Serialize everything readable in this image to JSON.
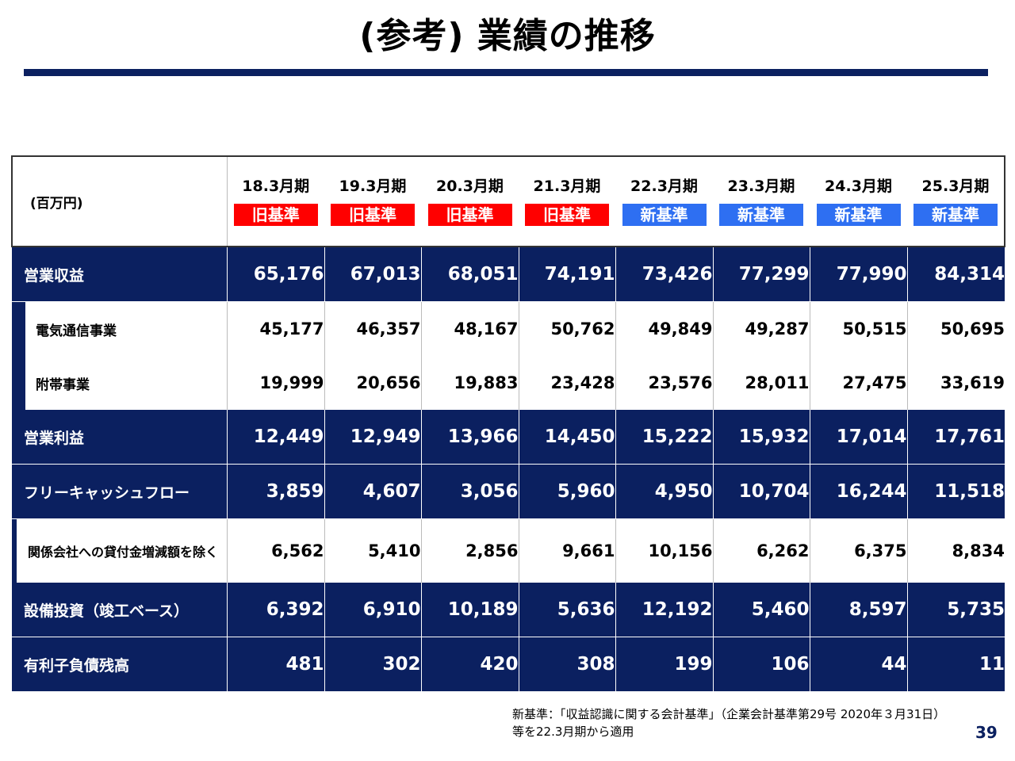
{
  "title": "(参考) 業績の推移",
  "table": {
    "unit": "(百万円)",
    "periods": [
      {
        "label": "18.3月期",
        "standard": "旧基準",
        "type": "old"
      },
      {
        "label": "19.3月期",
        "standard": "旧基準",
        "type": "old"
      },
      {
        "label": "20.3月期",
        "standard": "旧基準",
        "type": "old"
      },
      {
        "label": "21.3月期",
        "standard": "旧基準",
        "type": "old"
      },
      {
        "label": "22.3月期",
        "standard": "新基準",
        "type": "new"
      },
      {
        "label": "23.3月期",
        "standard": "新基準",
        "type": "new"
      },
      {
        "label": "24.3月期",
        "standard": "新基準",
        "type": "new"
      },
      {
        "label": "25.3月期",
        "standard": "新基準",
        "type": "new"
      }
    ],
    "rows": [
      {
        "label": "営業収益",
        "style": "main",
        "values": [
          "65,176",
          "67,013",
          "68,051",
          "74,191",
          "73,426",
          "77,299",
          "77,990",
          "84,314"
        ]
      },
      {
        "label": "電気通信事業",
        "style": "sub",
        "values": [
          "45,177",
          "46,357",
          "48,167",
          "50,762",
          "49,849",
          "49,287",
          "50,515",
          "50,695"
        ]
      },
      {
        "label": "附帯事業",
        "style": "sub",
        "values": [
          "19,999",
          "20,656",
          "19,883",
          "23,428",
          "23,576",
          "28,011",
          "27,475",
          "33,619"
        ]
      },
      {
        "label": "営業利益",
        "style": "main",
        "values": [
          "12,449",
          "12,949",
          "13,966",
          "14,450",
          "15,222",
          "15,932",
          "17,014",
          "17,761"
        ]
      },
      {
        "label": "フリーキャッシュフロー",
        "style": "main",
        "values": [
          "3,859",
          "4,607",
          "3,056",
          "5,960",
          "4,950",
          "10,704",
          "16,244",
          "11,518"
        ]
      },
      {
        "label": "関係会社への貸付金増減額を除く",
        "style": "sub-tall",
        "values": [
          "6,562",
          "5,410",
          "2,856",
          "9,661",
          "10,156",
          "6,262",
          "6,375",
          "8,834"
        ]
      },
      {
        "label": "設備投資（竣工ベース）",
        "style": "main",
        "values": [
          "6,392",
          "6,910",
          "10,189",
          "5,636",
          "12,192",
          "5,460",
          "8,597",
          "5,735"
        ]
      },
      {
        "label": "有利子負債残高",
        "style": "main",
        "values": [
          "481",
          "302",
          "420",
          "308",
          "199",
          "106",
          "44",
          "11"
        ]
      }
    ]
  },
  "note": "新基準：「収益認識に関する会計基準」（企業会計基準第29号 2020年３月31日）等を22.3月期から適用",
  "page_number": "39",
  "colors": {
    "navy": "#0b2060",
    "old_badge": "#ff0000",
    "new_badge": "#2e6ff2"
  }
}
